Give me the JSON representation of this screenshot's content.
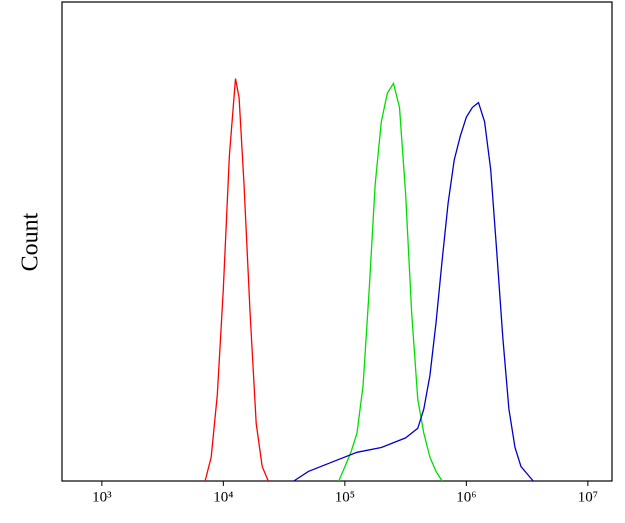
{
  "chart_data": {
    "type": "line",
    "ylabel": "Count",
    "xscale": "log",
    "xlim": [
      470,
      15800000
    ],
    "ylim": [
      0,
      100
    ],
    "xticks": [
      {
        "value": 1000,
        "label": "10³"
      },
      {
        "value": 10000,
        "label": "10⁴"
      },
      {
        "value": 100000,
        "label": "10⁵"
      },
      {
        "value": 1000000,
        "label": "10⁶"
      },
      {
        "value": 10000000,
        "label": "10⁷"
      }
    ],
    "series": [
      {
        "color": "#ff0000",
        "x": [
          7079,
          7943,
          8913,
          10000,
          11220,
          12589,
          13490,
          14791,
          16596,
          18621,
          20893,
          23442
        ],
        "values": [
          0,
          5,
          18,
          40,
          68,
          84,
          80,
          62,
          35,
          12,
          3,
          0
        ]
      },
      {
        "color": "#00dd00",
        "x": [
          89125,
          100000,
          112202,
          125893,
          141254,
          158489,
          177828,
          199526,
          223872,
          251189,
          281838,
          316228,
          354813,
          398107,
          446684,
          501187,
          562341,
          630957
        ],
        "values": [
          0,
          3,
          6,
          10,
          20,
          40,
          62,
          75,
          81,
          83,
          78,
          60,
          35,
          17,
          10,
          5,
          2,
          0
        ]
      },
      {
        "color": "#0000cc",
        "x": [
          38019,
          50119,
          79433,
          125893,
          199526,
          316228,
          398107,
          446684,
          501187,
          562341,
          630957,
          707946,
          794328,
          891251,
          1000000,
          1122018,
          1258925,
          1412538,
          1584893,
          1778279,
          1995262,
          2238721,
          2511886,
          2818383,
          3548134
        ],
        "values": [
          0,
          2,
          4,
          6,
          7,
          9,
          11,
          15,
          22,
          33,
          46,
          58,
          67,
          72,
          76,
          78,
          79,
          75,
          65,
          48,
          30,
          15,
          7,
          3,
          0
        ]
      }
    ]
  }
}
